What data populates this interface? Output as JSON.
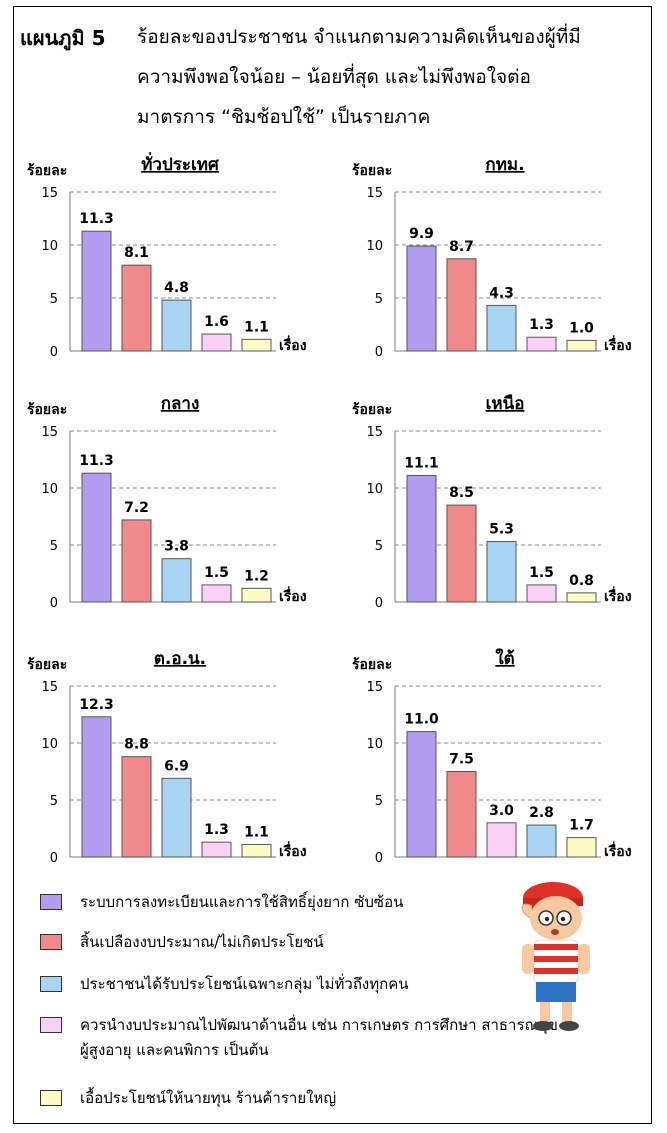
{
  "figure": {
    "label": "แผนภูมิ 5",
    "title_lines": [
      "ร้อยละของประชาชน  จำแนกตามความคิดเห็นของผู้ที่มี",
      "ความพึงพอใจน้อย – น้อยที่สุด และไม่พึงพอใจต่อ",
      "มาตรการ “ชิมช้อปใช้” เป็นรายภาค"
    ]
  },
  "colors": {
    "c1": "#b19cef",
    "c2": "#f08a8a",
    "c3": "#a9d5f5",
    "c4": "#fbd0f6",
    "c5": "#fdfbc4"
  },
  "legend": [
    {
      "label": "ระบบการลงทะเบียนและการใช้สิทธิ์ยุ่งยาก ซับซ้อน",
      "color_key": "c1"
    },
    {
      "label": "สิ้นเปลืองงบประมาณ/ไม่เกิดประโยชน์",
      "color_key": "c2"
    },
    {
      "label": "ประชาชนได้รับประโยชน์เฉพาะกลุ่ม ไม่ทั่วถึงทุกคน",
      "color_key": "c3"
    },
    {
      "label": "ควรนำงบประมาณไปพัฒนาด้านอื่น เช่น การเกษตร  การศึกษา สาธารณสุข",
      "label_line2": "ผู้สูงอายุ และคนพิการ เป็นต้น",
      "color_key": "c4"
    },
    {
      "label": "เอื้อประโยชน์ให้นายทุน ร้านค้ารายใหญ่",
      "color_key": "c5"
    }
  ],
  "chart_data": [
    {
      "type": "bar",
      "title": "ทั่วประเทศ",
      "ylabel": "ร้อยละ",
      "xlabel": "เรื่อง",
      "ylim": [
        0,
        15
      ],
      "yticks": [
        0,
        5,
        10,
        15
      ],
      "grid": true,
      "categories": [
        "ระบบการลงทะเบียนและการใช้สิทธิ์ยุ่งยาก ซับซ้อน",
        "สิ้นเปลืองงบประมาณ/ไม่เกิดประโยชน์",
        "ประชาชนได้รับประโยชน์เฉพาะกลุ่ม ไม่ทั่วถึงทุกคน",
        "ควรนำงบประมาณไปพัฒนาด้านอื่น",
        "เอื้อประโยชน์ให้นายทุน ร้านค้ารายใหญ่"
      ],
      "values": [
        11.3,
        8.1,
        4.8,
        1.6,
        1.1
      ],
      "labels": [
        "11.3",
        "8.1",
        "4.8",
        "1.6",
        "1.1"
      ],
      "bar_colors": [
        "c1",
        "c2",
        "c3",
        "c4",
        "c5"
      ]
    },
    {
      "type": "bar",
      "title": "กทม.",
      "ylabel": "ร้อยละ",
      "xlabel": "เรื่อง",
      "ylim": [
        0,
        15
      ],
      "yticks": [
        0,
        5,
        10,
        15
      ],
      "grid": true,
      "categories": [
        "ระบบการลงทะเบียนและการใช้สิทธิ์ยุ่งยาก ซับซ้อน",
        "สิ้นเปลืองงบประมาณ/ไม่เกิดประโยชน์",
        "ประชาชนได้รับประโยชน์เฉพาะกลุ่ม ไม่ทั่วถึงทุกคน",
        "ควรนำงบประมาณไปพัฒนาด้านอื่น",
        "เอื้อประโยชน์ให้นายทุน ร้านค้ารายใหญ่"
      ],
      "values": [
        9.9,
        8.7,
        4.3,
        1.3,
        1.0
      ],
      "labels": [
        "9.9",
        "8.7",
        "4.3",
        "1.3",
        "1.0"
      ],
      "bar_colors": [
        "c1",
        "c2",
        "c3",
        "c4",
        "c5"
      ]
    },
    {
      "type": "bar",
      "title": "กลาง",
      "ylabel": "ร้อยละ",
      "xlabel": "เรื่อง",
      "ylim": [
        0,
        15
      ],
      "yticks": [
        0,
        5,
        10,
        15
      ],
      "grid": true,
      "categories": [
        "ระบบการลงทะเบียนและการใช้สิทธิ์ยุ่งยาก ซับซ้อน",
        "สิ้นเปลืองงบประมาณ/ไม่เกิดประโยชน์",
        "ประชาชนได้รับประโยชน์เฉพาะกลุ่ม ไม่ทั่วถึงทุกคน",
        "ควรนำงบประมาณไปพัฒนาด้านอื่น",
        "เอื้อประโยชน์ให้นายทุน ร้านค้ารายใหญ่"
      ],
      "values": [
        11.3,
        7.2,
        3.8,
        1.5,
        1.2
      ],
      "labels": [
        "11.3",
        "7.2",
        "3.8",
        "1.5",
        "1.2"
      ],
      "bar_colors": [
        "c1",
        "c2",
        "c3",
        "c4",
        "c5"
      ]
    },
    {
      "type": "bar",
      "title": "เหนือ",
      "ylabel": "ร้อยละ",
      "xlabel": "เรื่อง",
      "ylim": [
        0,
        15
      ],
      "yticks": [
        0,
        5,
        10,
        15
      ],
      "grid": true,
      "categories": [
        "ระบบการลงทะเบียนและการใช้สิทธิ์ยุ่งยาก ซับซ้อน",
        "สิ้นเปลืองงบประมาณ/ไม่เกิดประโยชน์",
        "ประชาชนได้รับประโยชน์เฉพาะกลุ่ม ไม่ทั่วถึงทุกคน",
        "ควรนำงบประมาณไปพัฒนาด้านอื่น",
        "เอื้อประโยชน์ให้นายทุน ร้านค้ารายใหญ่"
      ],
      "values": [
        11.1,
        8.5,
        5.3,
        1.5,
        0.8
      ],
      "labels": [
        "11.1",
        "8.5",
        "5.3",
        "1.5",
        "0.8"
      ],
      "bar_colors": [
        "c1",
        "c2",
        "c3",
        "c4",
        "c5"
      ]
    },
    {
      "type": "bar",
      "title": "ต.อ.น.",
      "ylabel": "ร้อยละ",
      "xlabel": "เรื่อง",
      "ylim": [
        0,
        15
      ],
      "yticks": [
        0,
        5,
        10,
        15
      ],
      "grid": true,
      "categories": [
        "ระบบการลงทะเบียนและการใช้สิทธิ์ยุ่งยาก ซับซ้อน",
        "สิ้นเปลืองงบประมาณ/ไม่เกิดประโยชน์",
        "ประชาชนได้รับประโยชน์เฉพาะกลุ่ม ไม่ทั่วถึงทุกคน",
        "ควรนำงบประมาณไปพัฒนาด้านอื่น",
        "เอื้อประโยชน์ให้นายทุน ร้านค้ารายใหญ่"
      ],
      "values": [
        12.3,
        8.8,
        6.9,
        1.3,
        1.1
      ],
      "labels": [
        "12.3",
        "8.8",
        "6.9",
        "1.3",
        "1.1"
      ],
      "bar_colors": [
        "c1",
        "c2",
        "c3",
        "c4",
        "c5"
      ]
    },
    {
      "type": "bar",
      "title": "ใต้",
      "ylabel": "ร้อยละ",
      "xlabel": "เรื่อง",
      "ylim": [
        0,
        15
      ],
      "yticks": [
        0,
        5,
        10,
        15
      ],
      "grid": true,
      "categories": [
        "ระบบการลงทะเบียนและการใช้สิทธิ์ยุ่งยาก ซับซ้อน",
        "สิ้นเปลืองงบประมาณ/ไม่เกิดประโยชน์",
        "ควรนำงบประมาณไปพัฒนาด้านอื่น",
        "ประชาชนได้รับประโยชน์เฉพาะกลุ่ม ไม่ทั่วถึงทุกคน",
        "เอื้อประโยชน์ให้นายทุน ร้านค้ารายใหญ่"
      ],
      "values": [
        11.0,
        7.5,
        3.0,
        2.8,
        1.7
      ],
      "labels": [
        "11.0",
        "7.5",
        "3.0",
        "2.8",
        "1.7"
      ],
      "bar_colors": [
        "c1",
        "c2",
        "c4",
        "c3",
        "c5"
      ]
    }
  ]
}
